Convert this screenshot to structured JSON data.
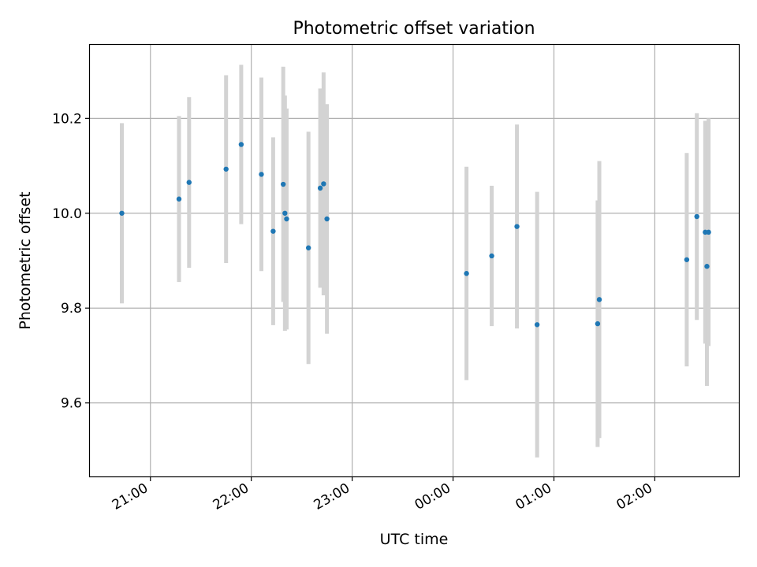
{
  "chart_data": {
    "type": "scatter",
    "title": "Photometric offset variation",
    "xlabel": "UTC time",
    "ylabel": "Photometric offset",
    "x_ticks": [
      "21:00",
      "22:00",
      "23:00",
      "00:00",
      "01:00",
      "02:00"
    ],
    "y_ticks": [
      "9.6",
      "9.8",
      "10.0",
      "10.2"
    ],
    "y_tick_values": [
      9.6,
      9.8,
      10.0,
      10.2
    ],
    "xlim_minutes_from_2100": [
      -36,
      350
    ],
    "ylim": [
      9.445,
      10.355
    ],
    "grid": true,
    "point_color": "#1f77b4",
    "errorbar_color": "#d3d3d3",
    "points": [
      {
        "t": "20:43",
        "y": 10.0,
        "err": 0.19
      },
      {
        "t": "21:17",
        "y": 10.03,
        "err": 0.175
      },
      {
        "t": "21:23",
        "y": 10.065,
        "err": 0.18
      },
      {
        "t": "21:45",
        "y": 10.093,
        "err": 0.198
      },
      {
        "t": "21:54",
        "y": 10.145,
        "err": 0.168
      },
      {
        "t": "22:06",
        "y": 10.082,
        "err": 0.204
      },
      {
        "t": "22:13",
        "y": 9.962,
        "err": 0.198
      },
      {
        "t": "22:19",
        "y": 10.061,
        "err": 0.248
      },
      {
        "t": "22:20",
        "y": 10.0,
        "err": 0.248
      },
      {
        "t": "22:21",
        "y": 9.988,
        "err": 0.233
      },
      {
        "t": "22:34",
        "y": 9.927,
        "err": 0.245
      },
      {
        "t": "22:41",
        "y": 10.053,
        "err": 0.21
      },
      {
        "t": "22:43",
        "y": 10.062,
        "err": 0.235
      },
      {
        "t": "22:45",
        "y": 9.988,
        "err": 0.242
      },
      {
        "t": "00:08",
        "y": 9.873,
        "err": 0.225
      },
      {
        "t": "00:23",
        "y": 9.91,
        "err": 0.148
      },
      {
        "t": "00:38",
        "y": 9.972,
        "err": 0.215
      },
      {
        "t": "00:50",
        "y": 9.765,
        "err": 0.28
      },
      {
        "t": "01:26",
        "y": 9.767,
        "err": 0.26
      },
      {
        "t": "01:27",
        "y": 9.818,
        "err": 0.292
      },
      {
        "t": "02:19",
        "y": 9.902,
        "err": 0.225
      },
      {
        "t": "02:25",
        "y": 9.993,
        "err": 0.218
      },
      {
        "t": "02:30",
        "y": 9.96,
        "err": 0.235
      },
      {
        "t": "02:31",
        "y": 9.888,
        "err": 0.252
      },
      {
        "t": "02:32",
        "y": 9.96,
        "err": 0.24
      }
    ]
  }
}
